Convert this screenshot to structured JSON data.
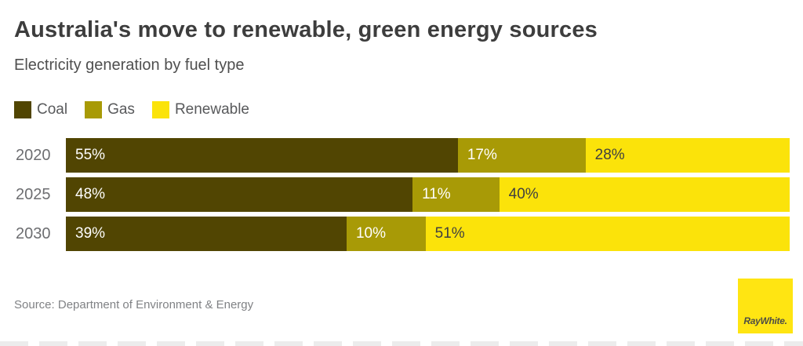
{
  "header": {
    "title": "Australia's move to renewable, green energy sources",
    "subtitle": "Electricity generation by fuel type"
  },
  "legend": {
    "items": [
      {
        "label": "Coal",
        "color": "#514502"
      },
      {
        "label": "Gas",
        "color": "#a89a06"
      },
      {
        "label": "Renewable",
        "color": "#fbe30a"
      }
    ]
  },
  "chart_data": {
    "type": "bar",
    "orientation": "horizontal",
    "stacked": true,
    "unit": "%",
    "title": "Australia's move to renewable, green energy sources",
    "subtitle": "Electricity generation by fuel type",
    "categories": [
      "2020",
      "2025",
      "2030"
    ],
    "series": [
      {
        "name": "Coal",
        "color": "#514502",
        "values": [
          55,
          48,
          39
        ]
      },
      {
        "name": "Gas",
        "color": "#a89a06",
        "values": [
          17,
          11,
          10
        ]
      },
      {
        "name": "Renewable",
        "color": "#fbe30a",
        "values": [
          28,
          40,
          51
        ]
      }
    ],
    "value_label_format": "{value}%",
    "label_color_on_dark_segments": "#ffffff",
    "label_color_on_light_segments": "#404041",
    "light_segments": [
      "Renewable"
    ],
    "legend_position": "top-left",
    "grid": false,
    "axis_labels_shown": false
  },
  "footer": {
    "source": "Source: Department of Environment & Energy",
    "logo_text": "RayWhite."
  },
  "colors": {
    "title": "#3d3d3d",
    "subtitle": "#4f4f4f",
    "year_label": "#6d6e71",
    "source": "#808285",
    "logo_bg": "#ffe512",
    "logo_text": "#4e4e45",
    "background": "#ffffff"
  }
}
